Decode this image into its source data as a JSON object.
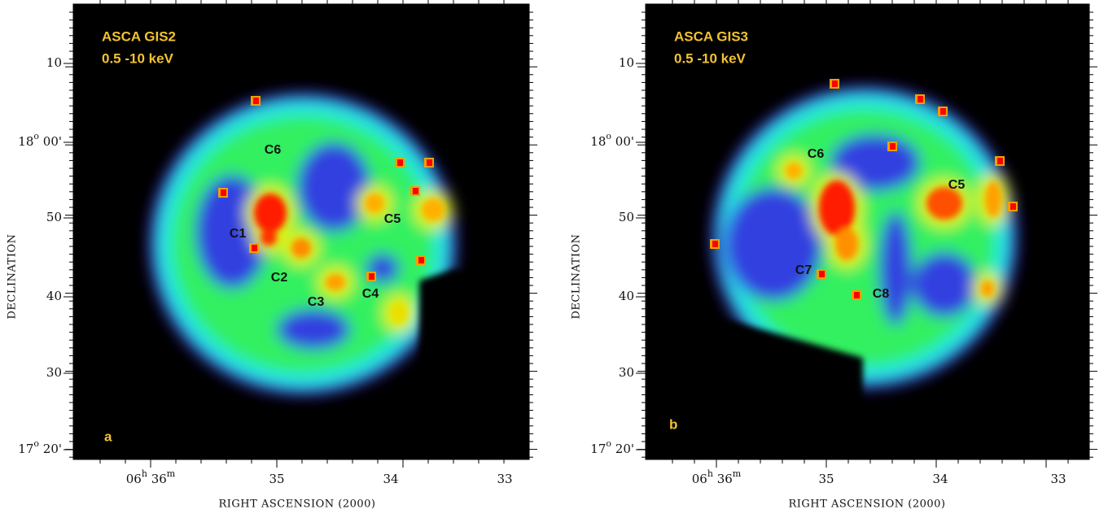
{
  "panels": [
    {
      "title_lines": [
        "ASCA GIS2",
        "0.5 -10 keV"
      ],
      "letter": "a",
      "y_ticks": [
        {
          "main": "10"
        },
        {
          "main": "18",
          "sup": "o",
          "rest": " 00'"
        },
        {
          "main": "50"
        },
        {
          "main": "40"
        },
        {
          "main": "30"
        },
        {
          "main": "17",
          "sup": "o",
          "rest": " 20'"
        }
      ],
      "x_ticks": [
        {
          "main": "06",
          "sup": "h",
          "rest": " 36",
          "sup2": "m"
        },
        {
          "main": "35"
        },
        {
          "main": "34"
        },
        {
          "main": "33"
        }
      ],
      "y_label": "DECLINATION",
      "x_label": "RIGHT ASCENSION  (2000)",
      "sources": [
        "C6",
        "C1",
        "C5",
        "C2",
        "C3",
        "C4"
      ]
    },
    {
      "title_lines": [
        "ASCA GIS3",
        "0.5 -10 keV"
      ],
      "letter": "b",
      "y_ticks": [
        {
          "main": "10"
        },
        {
          "main": "18",
          "sup": "o",
          "rest": " 00'"
        },
        {
          "main": "50"
        },
        {
          "main": "40"
        },
        {
          "main": "30"
        },
        {
          "main": "17",
          "sup": "o",
          "rest": " 20'"
        }
      ],
      "x_ticks": [
        {
          "main": "06",
          "sup": "h",
          "rest": " 36",
          "sup2": "m"
        },
        {
          "main": "35"
        },
        {
          "main": "34"
        },
        {
          "main": "33"
        }
      ],
      "y_label": "DECLINATION",
      "x_label": "RIGHT ASCENSION  (2000)",
      "sources": [
        "C6",
        "C5",
        "C7",
        "C8"
      ]
    }
  ]
}
